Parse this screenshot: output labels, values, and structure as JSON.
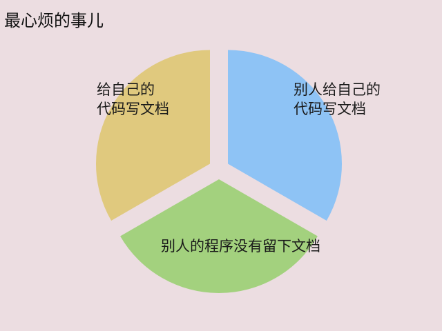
{
  "chart_data": {
    "type": "pie",
    "title": "最心烦的事儿",
    "slices": [
      {
        "label_lines": [
          "别人给自己的",
          "代码写文档"
        ],
        "value": 1,
        "color": "#8ec3f5"
      },
      {
        "label_lines": [
          "别人的程序没有留下文档"
        ],
        "value": 1,
        "color": "#a3d17e"
      },
      {
        "label_lines": [
          "给自己的",
          "代码写文档"
        ],
        "value": 1,
        "color": "#e0c97e"
      }
    ],
    "exploded": true,
    "legend": "none"
  }
}
